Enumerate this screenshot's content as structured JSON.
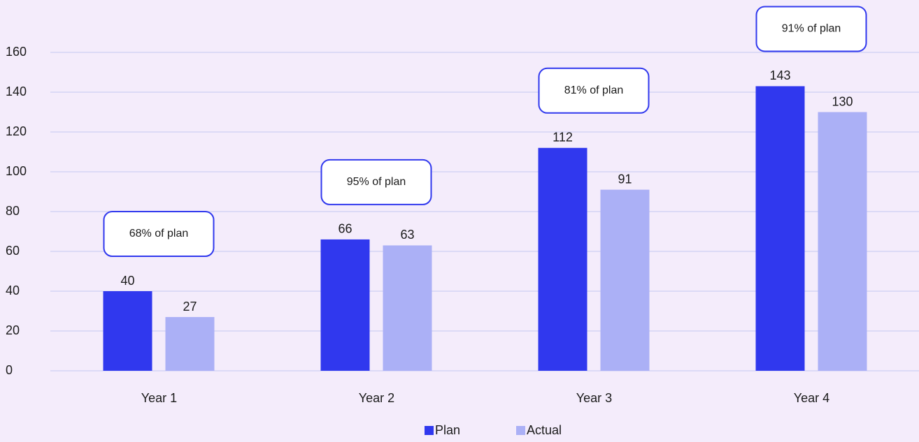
{
  "chart_data": {
    "type": "bar",
    "categories": [
      "Year 1",
      "Year 2",
      "Year 3",
      "Year 4"
    ],
    "series": [
      {
        "name": "Plan",
        "color": "#3038ee",
        "values": [
          40,
          66,
          112,
          143
        ]
      },
      {
        "name": "Actual",
        "color": "#abb0f6",
        "values": [
          27,
          63,
          91,
          130
        ]
      }
    ],
    "annotations": [
      "68% of plan",
      "95% of plan",
      "81% of plan",
      "91% of plan"
    ],
    "ylim": [
      0,
      160
    ],
    "yticks": [
      0,
      20,
      40,
      60,
      80,
      100,
      120,
      140,
      160
    ],
    "grid": true,
    "legend": "bottom"
  }
}
